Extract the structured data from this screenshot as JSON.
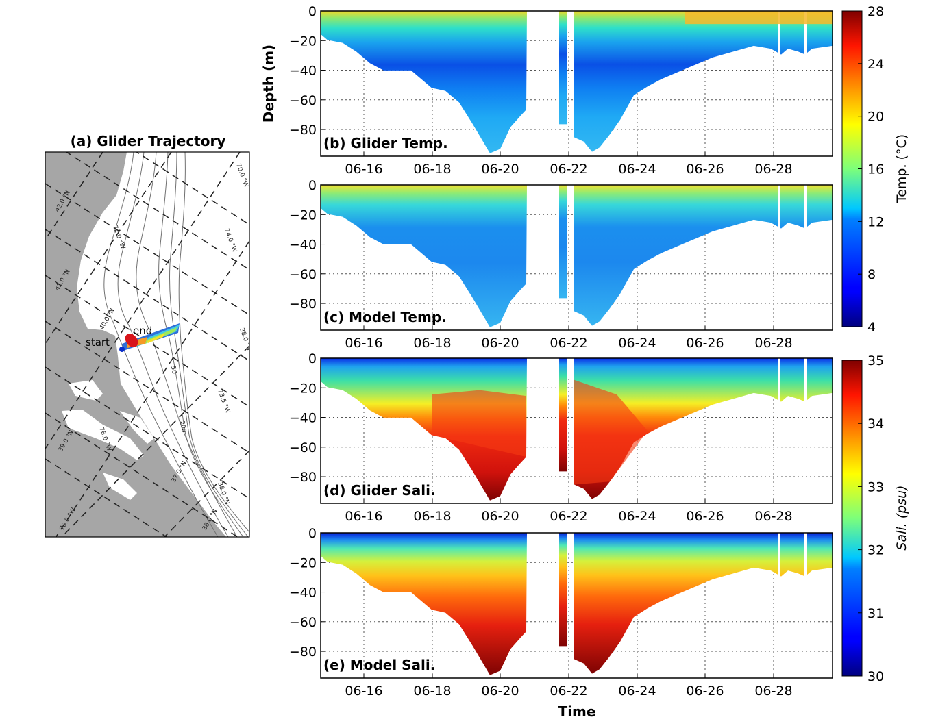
{
  "chart_data": [
    {
      "id": "a",
      "type": "map",
      "title": "(a) Glider Trajectory",
      "annotations": {
        "start": "start",
        "end": "end"
      },
      "graticule_labels": [
        "42.0 °N",
        "72.0 °W",
        "70.0 °W",
        "41.0 °N",
        "40.0 °N",
        "38.0 °N",
        "73.5 °W",
        "39.0 °N",
        "74.0 °W",
        "75.0 °W",
        "76.0 °W",
        "38.0 °N",
        "37.0 °N",
        "36.0 °N",
        "78.0 °W",
        "50",
        "200"
      ]
    },
    {
      "id": "b",
      "type": "heatmap",
      "panel_label": "(b) Glider Temp.",
      "ylabel": "Depth (m)",
      "xlabel": "",
      "variable": "temperature",
      "xticks": [
        "06-16",
        "06-18",
        "06-20",
        "06-22",
        "06-24",
        "06-26",
        "06-28"
      ],
      "yticks": [
        "0",
        "−20",
        "−40",
        "−60",
        "−80"
      ],
      "ylim": [
        -98,
        0
      ],
      "xlim": [
        "06-14 19:00",
        "06-29 20:00"
      ]
    },
    {
      "id": "c",
      "type": "heatmap",
      "panel_label": "(c) Model Temp.",
      "ylabel": "",
      "xlabel": "",
      "variable": "temperature",
      "xticks": [
        "06-16",
        "06-18",
        "06-20",
        "06-22",
        "06-24",
        "06-26",
        "06-28"
      ],
      "yticks": [
        "0",
        "−20",
        "−40",
        "−60",
        "−80"
      ],
      "ylim": [
        -98,
        0
      ]
    },
    {
      "id": "d",
      "type": "heatmap",
      "panel_label": "(d) Glider Sali.",
      "ylabel": "",
      "xlabel": "",
      "variable": "salinity",
      "xticks": [
        "06-16",
        "06-18",
        "06-20",
        "06-22",
        "06-24",
        "06-26",
        "06-28"
      ],
      "yticks": [
        "0",
        "−20",
        "−40",
        "−60",
        "−80"
      ],
      "ylim": [
        -98,
        0
      ]
    },
    {
      "id": "e",
      "type": "heatmap",
      "panel_label": "(e) Model Sali.",
      "ylabel": "",
      "xlabel": "Time",
      "variable": "salinity",
      "xticks": [
        "06-16",
        "06-18",
        "06-20",
        "06-22",
        "06-24",
        "06-26",
        "06-28"
      ],
      "yticks": [
        "0",
        "−20",
        "−40",
        "−60",
        "−80"
      ],
      "ylim": [
        -98,
        0
      ]
    }
  ],
  "colorbars": {
    "temperature": {
      "label": "Temp. (°C)",
      "min": 4,
      "max": 28,
      "ticks": [
        "4",
        "8",
        "12",
        "16",
        "20",
        "24",
        "28"
      ]
    },
    "salinity": {
      "label": "Sali. (psu)",
      "min": 30,
      "max": 35,
      "ticks": [
        "30",
        "31",
        "32",
        "33",
        "34",
        "35"
      ]
    }
  },
  "colormap": "jet"
}
